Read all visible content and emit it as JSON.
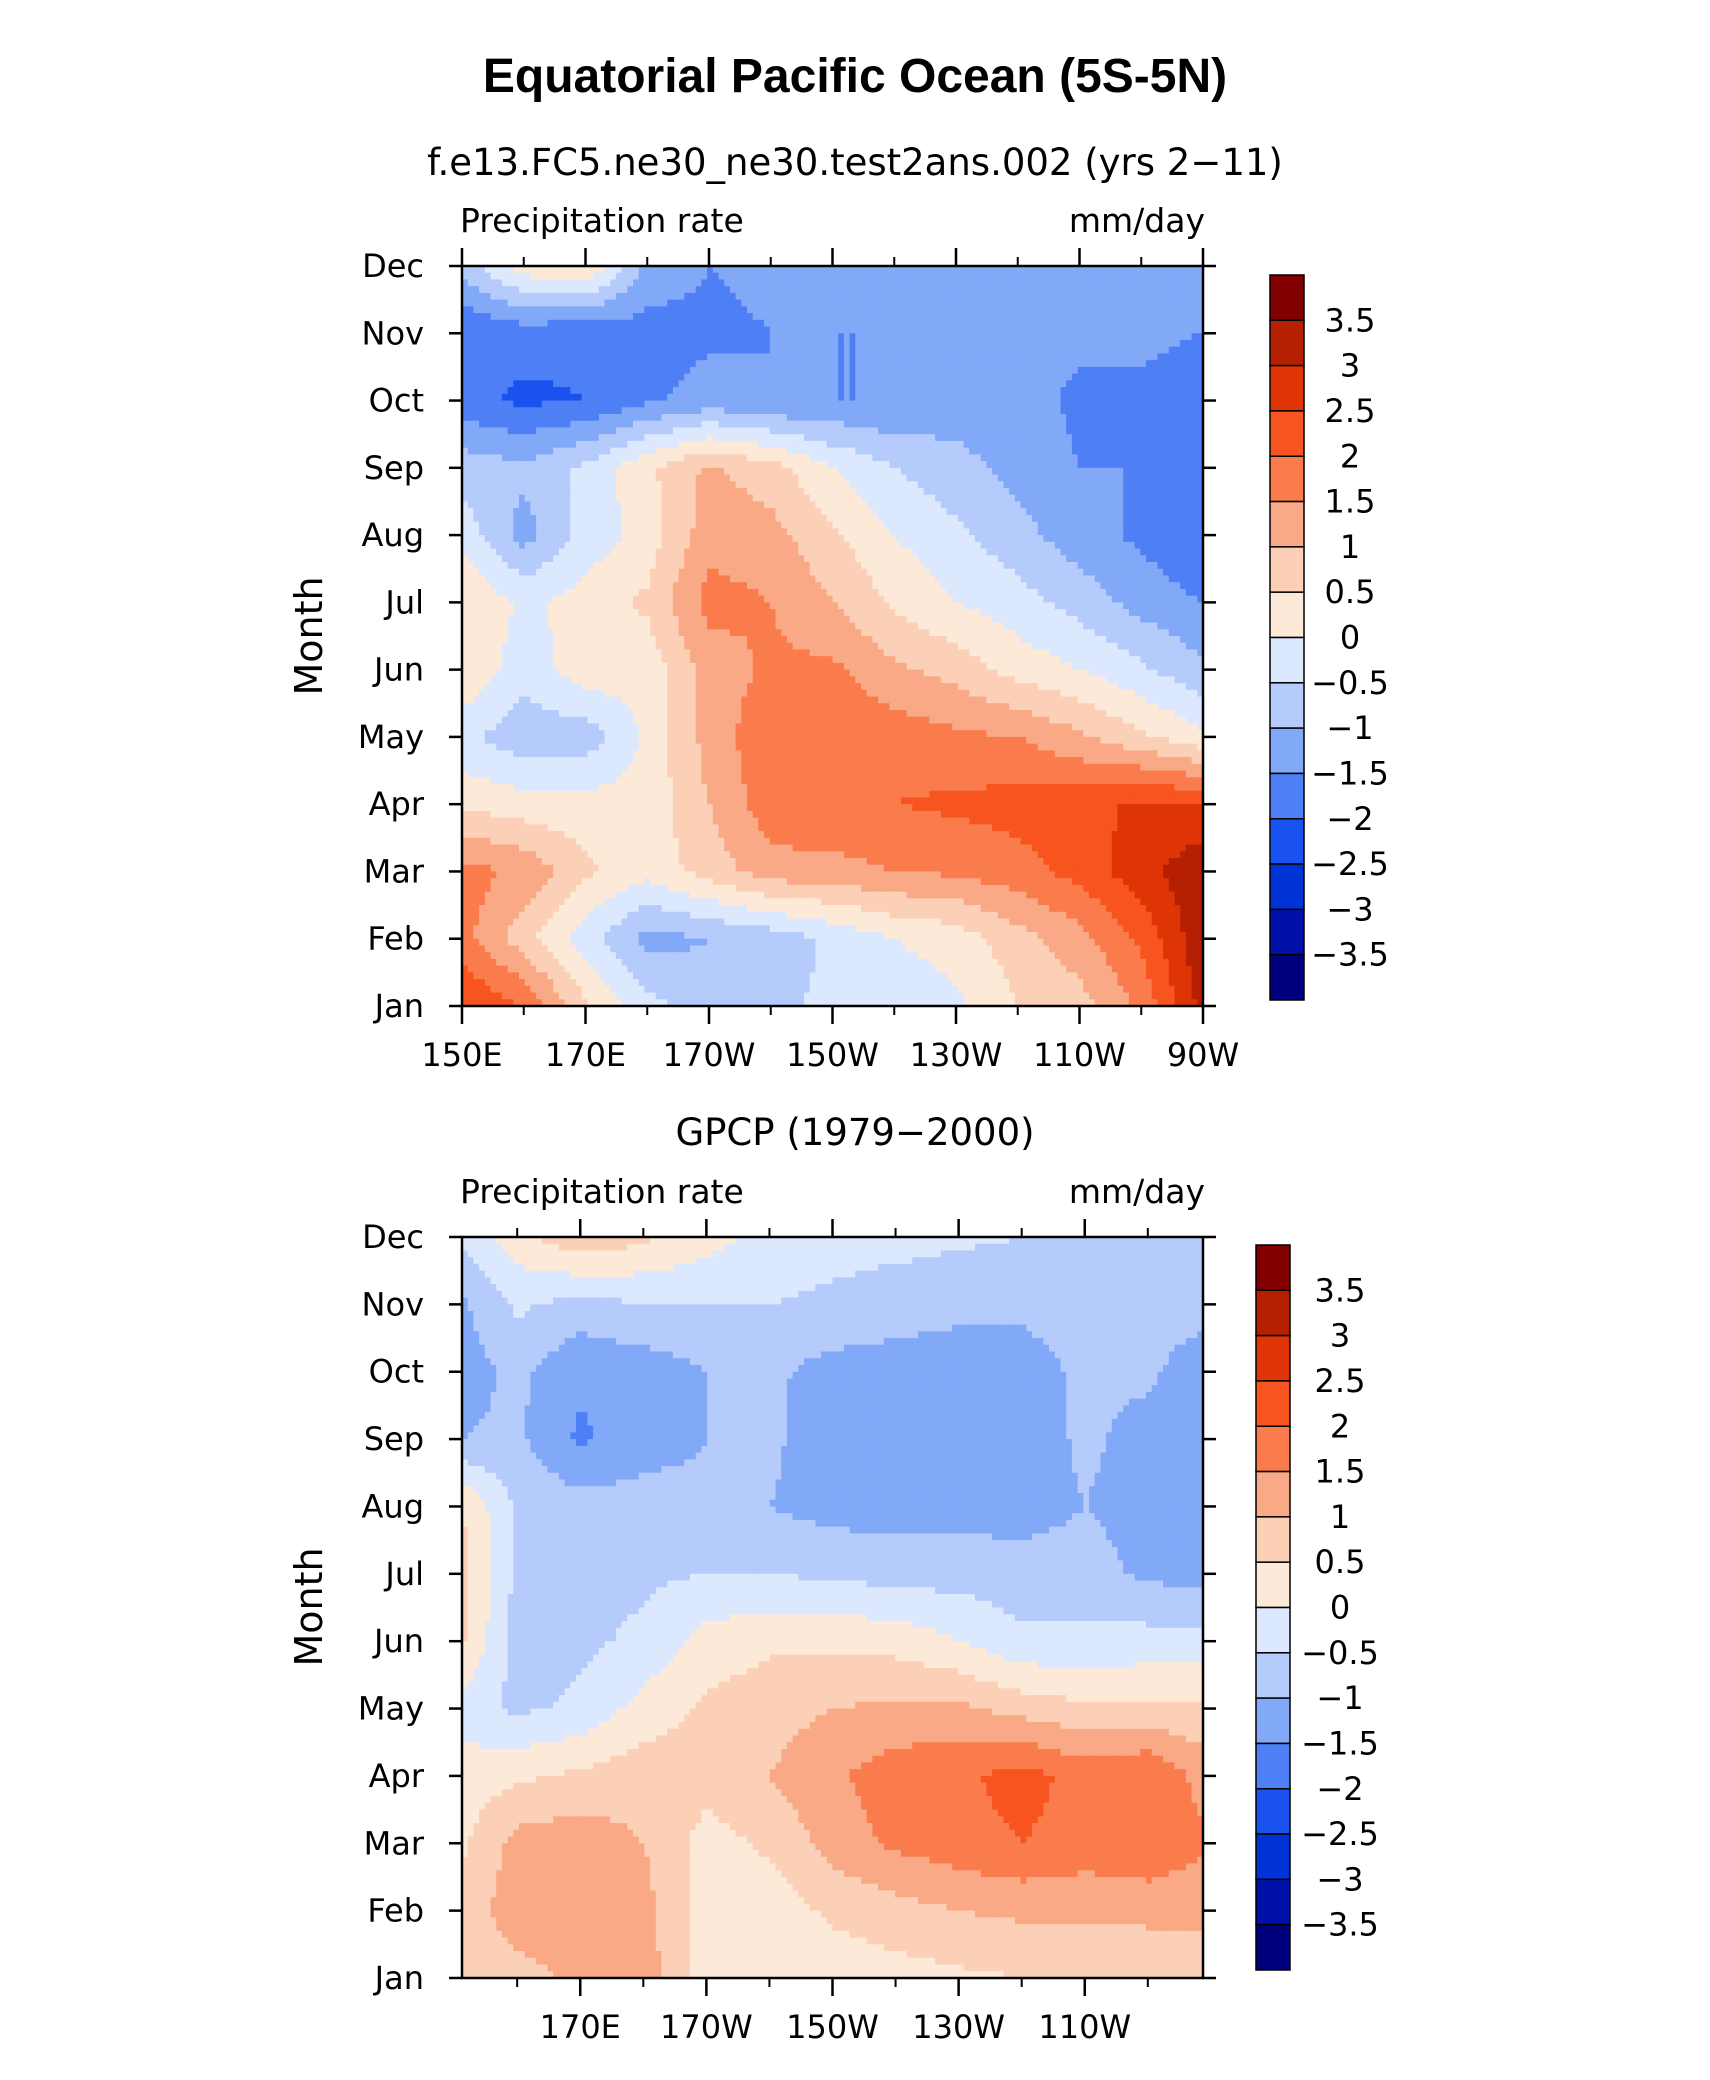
{
  "figure": {
    "title": "Equatorial Pacific Ocean (5S-5N)"
  },
  "colors": {
    "levels": [
      -3.5,
      -3,
      -2.5,
      -2,
      -1.5,
      -1,
      -0.5,
      0,
      0.5,
      1,
      1.5,
      2,
      2.5,
      3,
      3.5
    ],
    "level_labels": [
      "3.5",
      "3",
      "2.5",
      "2",
      "1.5",
      "1",
      "0.5",
      "0",
      "−0.5",
      "−1",
      "−1.5",
      "−2",
      "−2.5",
      "−3",
      "−3.5"
    ],
    "fills": [
      "#00007f",
      "#0010a8",
      "#0033d6",
      "#1a52f0",
      "#4e7ff4",
      "#82a8f8",
      "#b4cbfb",
      "#dbe8fd",
      "#fde9d8",
      "#fcd0b6",
      "#f9a985",
      "#fa7c4c",
      "#f8541f",
      "#de3406",
      "#b51f02",
      "#820000"
    ]
  },
  "chart_data": [
    {
      "type": "heatmap",
      "subtitle": "f.e13.FC5.ne30_ne30.test2ans.002 (yrs 2−11)",
      "left_label": "Precipitation rate",
      "right_label": "mm/day",
      "ylabel": "Month",
      "xlabel": "",
      "x_ticks": [
        "150E",
        "170E",
        "170W",
        "150W",
        "130W",
        "110W",
        "90W"
      ],
      "x_tick_lon": [
        150,
        170,
        190,
        210,
        230,
        250,
        270
      ],
      "xlim": [
        150,
        270
      ],
      "y_ticks": [
        "Jan",
        "Feb",
        "Mar",
        "Apr",
        "May",
        "Jun",
        "Jul",
        "Aug",
        "Sep",
        "Oct",
        "Nov",
        "Dec"
      ],
      "ylim": [
        1,
        12
      ],
      "x": [
        150,
        160,
        170,
        180,
        190,
        200,
        210,
        220,
        230,
        240,
        250,
        260,
        270
      ],
      "months": [
        1,
        2,
        3,
        4,
        5,
        6,
        7,
        8,
        9,
        10,
        11,
        12
      ],
      "values": [
        [
          2.5,
          2.0,
          0.6,
          -0.3,
          -0.8,
          -0.6,
          -0.4,
          -0.3,
          -0.1,
          0.5,
          0.8,
          1.6,
          3.2
        ],
        [
          1.7,
          0.7,
          -0.3,
          -1.2,
          -1.0,
          -0.8,
          -0.4,
          0.0,
          0.2,
          0.8,
          1.3,
          2.1,
          3.4
        ],
        [
          1.7,
          1.4,
          0.6,
          0.2,
          0.7,
          1.3,
          1.3,
          1.5,
          1.6,
          1.8,
          2.2,
          2.8,
          3.4
        ],
        [
          0.4,
          0.2,
          0.2,
          0.2,
          1.0,
          1.8,
          2.0,
          2.0,
          2.1,
          2.2,
          2.3,
          2.6,
          2.5
        ],
        [
          -0.4,
          -0.8,
          -0.8,
          0.1,
          1.2,
          1.9,
          1.9,
          1.8,
          1.6,
          1.5,
          1.1,
          0.6,
          0.1
        ],
        [
          0.5,
          -0.3,
          0.3,
          0.2,
          1.2,
          1.6,
          1.6,
          1.1,
          0.8,
          0.3,
          0.0,
          -0.4,
          -0.9
        ],
        [
          0.5,
          -0.1,
          0.2,
          0.6,
          1.7,
          1.5,
          1.0,
          0.4,
          0.0,
          -0.3,
          -0.7,
          -1.2,
          -1.5
        ],
        [
          -0.2,
          -1.2,
          -0.3,
          0.2,
          1.3,
          1.2,
          0.6,
          0.0,
          -0.4,
          -0.8,
          -1.3,
          -1.6,
          -2.0
        ],
        [
          -0.7,
          -0.9,
          -0.4,
          0.4,
          1.1,
          0.7,
          0.0,
          -0.5,
          -0.8,
          -1.2,
          -1.5,
          -1.5,
          -2.0
        ],
        [
          -1.8,
          -2.1,
          -2.0,
          -1.6,
          -1.3,
          -1.5,
          -1.5,
          -1.5,
          -1.3,
          -1.3,
          -1.6,
          -1.6,
          -1.8
        ],
        [
          -2.0,
          -1.8,
          -1.9,
          -1.7,
          -1.6,
          -1.5,
          -1.5,
          -1.5,
          -1.4,
          -1.4,
          -1.4,
          -1.4,
          -1.5
        ],
        [
          -0.8,
          0.3,
          0.6,
          -1.2,
          -1.5,
          -1.4,
          -1.4,
          -1.4,
          -1.4,
          -1.3,
          -1.1,
          -1.2,
          -1.4
        ]
      ]
    },
    {
      "type": "heatmap",
      "subtitle": "GPCP (1979−2000)",
      "left_label": "Precipitation rate",
      "right_label": "mm/day",
      "ylabel": "Month",
      "xlabel": "",
      "x_ticks": [
        "170E",
        "170W",
        "150W",
        "130W",
        "110W"
      ],
      "x_tick_lon": [
        170,
        190,
        210,
        230,
        250
      ],
      "xlim": [
        151.25,
        268.75
      ],
      "y_ticks": [
        "Jan",
        "Feb",
        "Mar",
        "Apr",
        "May",
        "Jun",
        "Jul",
        "Aug",
        "Sep",
        "Oct",
        "Nov",
        "Dec"
      ],
      "ylim": [
        1,
        12
      ],
      "x": [
        151.25,
        160,
        170,
        180,
        190,
        200,
        210,
        220,
        230,
        240,
        250,
        260,
        268.75
      ],
      "months": [
        1,
        2,
        3,
        4,
        5,
        6,
        7,
        8,
        9,
        10,
        11,
        12
      ],
      "values": [
        [
          0.7,
          0.8,
          1.1,
          1.3,
          0.2,
          0.1,
          0.2,
          0.3,
          0.4,
          0.5,
          0.6,
          0.7,
          0.8
        ],
        [
          0.7,
          1.3,
          1.3,
          1.2,
          0.2,
          0.2,
          0.6,
          0.8,
          1.0,
          1.1,
          1.1,
          1.1,
          1.1
        ],
        [
          0.4,
          1.2,
          1.3,
          1.0,
          0.3,
          0.6,
          1.2,
          1.6,
          1.8,
          2.0,
          1.8,
          2.0,
          1.6
        ],
        [
          0.2,
          0.4,
          0.6,
          0.8,
          0.7,
          1.0,
          1.4,
          1.8,
          1.9,
          2.2,
          1.8,
          2.0,
          1.3
        ],
        [
          -0.2,
          -0.6,
          -0.4,
          0.2,
          0.6,
          0.8,
          1.0,
          1.1,
          1.1,
          0.8,
          0.6,
          0.6,
          0.6
        ],
        [
          0.6,
          -0.8,
          -0.6,
          -0.4,
          0.2,
          0.4,
          0.4,
          0.3,
          0.0,
          -0.4,
          -0.4,
          -0.3,
          -0.3
        ],
        [
          0.7,
          -0.6,
          -0.6,
          -0.6,
          -0.5,
          -0.5,
          -0.6,
          -0.7,
          -0.7,
          -0.8,
          -0.8,
          -1.1,
          -1.2
        ],
        [
          0.5,
          -0.6,
          -0.8,
          -0.8,
          -0.9,
          -1.0,
          -1.2,
          -1.2,
          -1.2,
          -1.2,
          -1.0,
          -1.2,
          -1.3
        ],
        [
          -1.0,
          -0.9,
          -1.6,
          -1.2,
          -1.0,
          -0.9,
          -1.3,
          -1.2,
          -1.2,
          -1.3,
          -0.9,
          -1.2,
          -1.3
        ],
        [
          -1.2,
          -0.9,
          -1.4,
          -1.3,
          -1.0,
          -0.9,
          -1.2,
          -1.2,
          -1.2,
          -1.2,
          -0.9,
          -0.9,
          -1.3
        ],
        [
          -1.1,
          -0.4,
          -0.7,
          -0.5,
          -0.5,
          -0.5,
          -0.6,
          -0.8,
          -0.9,
          -0.9,
          -0.8,
          -0.8,
          -0.8
        ],
        [
          -0.4,
          0.3,
          0.9,
          0.6,
          0.2,
          -0.2,
          -0.3,
          -0.3,
          -0.4,
          -0.5,
          -0.6,
          -0.7,
          -0.7
        ]
      ]
    }
  ]
}
